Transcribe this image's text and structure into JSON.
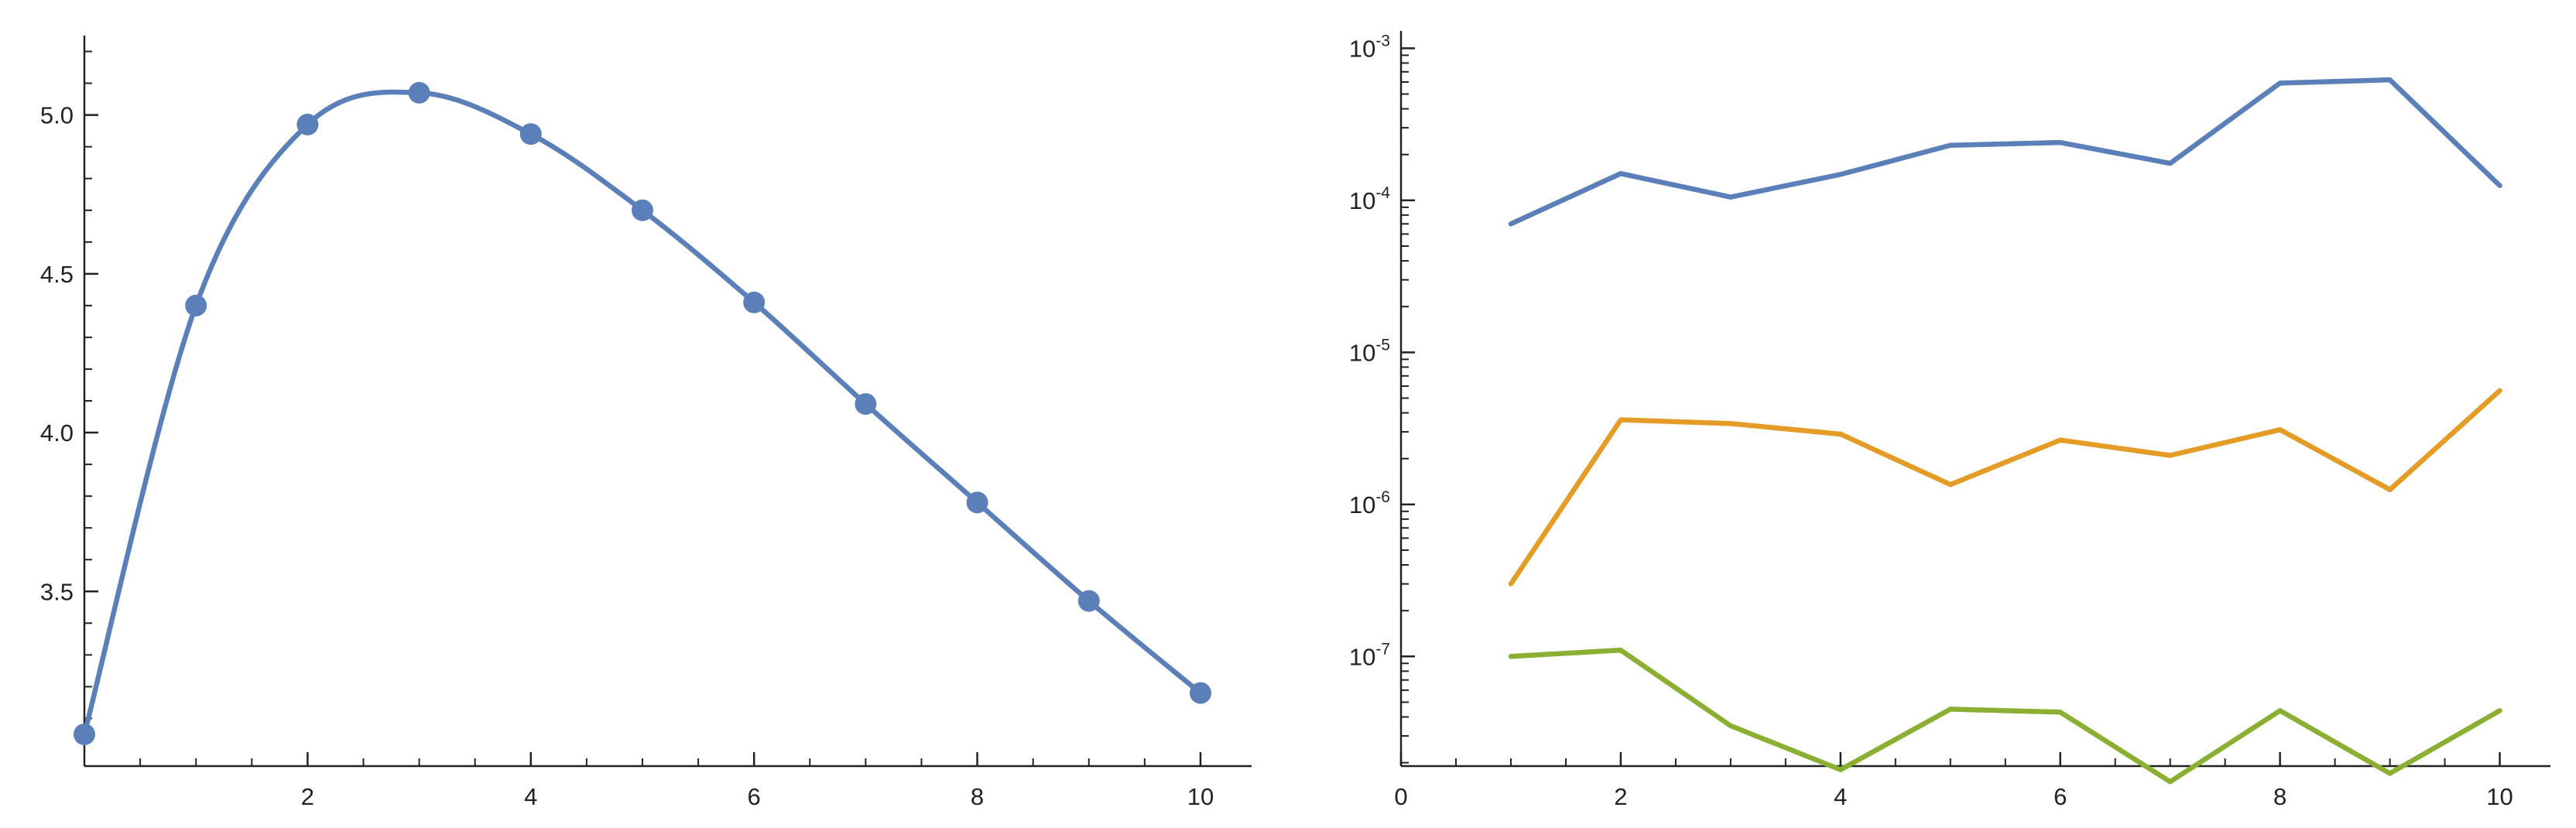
{
  "chart_data": [
    {
      "type": "scatter",
      "title": "",
      "xlabel": "",
      "ylabel": "",
      "xlim": [
        0,
        10.25
      ],
      "ylim": [
        2.95,
        5.25
      ],
      "x_ticks": [
        2,
        4,
        6,
        8,
        10
      ],
      "x_tick_labels": [
        "2",
        "4",
        "6",
        "8",
        "10"
      ],
      "y_ticks": [
        3.5,
        4.0,
        4.5,
        5.0
      ],
      "y_tick_labels": [
        "3.5",
        "4.0",
        "4.5",
        "5.0"
      ],
      "grid": false,
      "colors": {
        "series": "#5b7fb8"
      },
      "points": {
        "x": [
          0,
          1,
          2,
          3,
          4,
          5,
          6,
          7,
          8,
          9,
          10
        ],
        "y": [
          3.05,
          4.4,
          4.97,
          5.07,
          4.94,
          4.7,
          4.41,
          4.09,
          3.78,
          3.47,
          3.18
        ]
      },
      "fitted_curve": "smooth interpolating curve through the points"
    },
    {
      "type": "line",
      "title": "",
      "xlabel": "",
      "ylabel": "",
      "xlim": [
        0,
        10.25
      ],
      "ylim": [
        1.9e-08,
        0.0013
      ],
      "log_y": true,
      "x_ticks": [
        0,
        2,
        4,
        6,
        8,
        10
      ],
      "x_tick_labels": [
        "0",
        "2",
        "4",
        "6",
        "8",
        "10"
      ],
      "y_ticks": [
        {
          "value": 0.001,
          "base": "10",
          "exp": "-3"
        },
        {
          "value": 0.0001,
          "base": "10",
          "exp": "-4"
        },
        {
          "value": 1e-05,
          "base": "10",
          "exp": "-5"
        },
        {
          "value": 1e-06,
          "base": "10",
          "exp": "-6"
        },
        {
          "value": 1e-07,
          "base": "10",
          "exp": "-7"
        }
      ],
      "grid": false,
      "x": [
        1,
        2,
        3,
        4,
        5,
        6,
        7,
        8,
        9,
        10
      ],
      "series": [
        {
          "color": "#5b7fb8",
          "values": [
            7e-05,
            0.00015,
            0.000105,
            0.000148,
            0.00023,
            0.00024,
            0.000175,
            0.00059,
            0.00062,
            0.000125
          ]
        },
        {
          "color": "#e59c27",
          "values": [
            3e-07,
            3.6e-06,
            3.4e-06,
            2.9e-06,
            1.35e-06,
            2.65e-06,
            2.1e-06,
            3.1e-06,
            1.25e-06,
            5.6e-06
          ]
        },
        {
          "color": "#8aaf32",
          "values": [
            1e-07,
            1.1e-07,
            3.5e-08,
            1.8e-08,
            4.5e-08,
            4.3e-08,
            1.5e-08,
            4.4e-08,
            1.7e-08,
            4.4e-08
          ]
        }
      ]
    }
  ]
}
